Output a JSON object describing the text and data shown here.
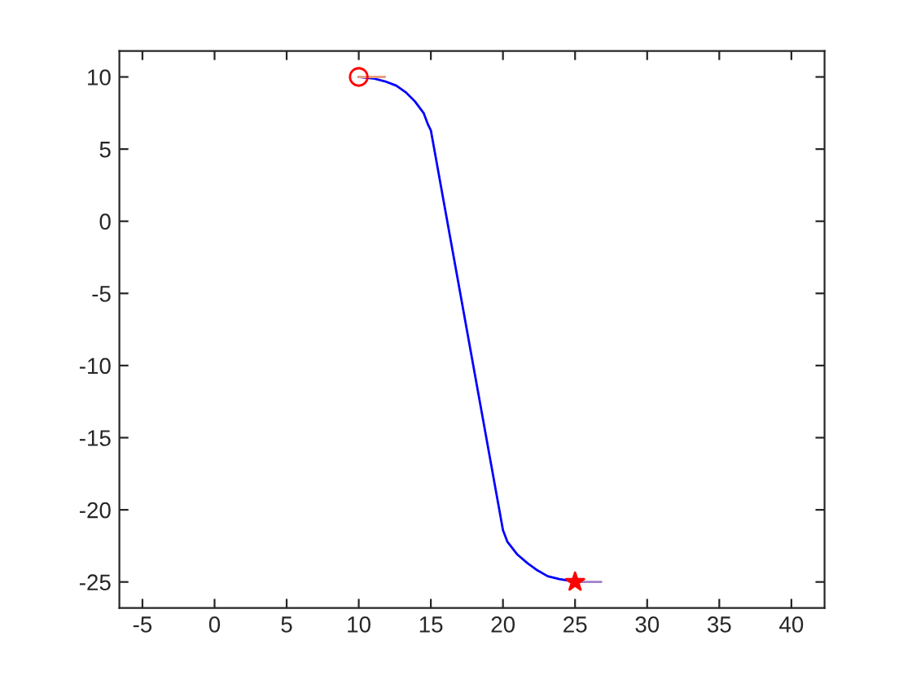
{
  "chart_data": {
    "type": "line",
    "xlim": [
      -6.6,
      42.3
    ],
    "ylim": [
      -26.8,
      11.8
    ],
    "xticks": [
      -5,
      0,
      5,
      10,
      15,
      20,
      25,
      30,
      35,
      40
    ],
    "yticks": [
      -25,
      -20,
      -15,
      -10,
      -5,
      0,
      5,
      10
    ],
    "grid": false,
    "legend": false,
    "series": [
      {
        "color": "#0000ff",
        "marker": "none",
        "x": [
          10,
          11.0,
          11.8,
          12.6,
          13.3,
          13.9,
          14.5,
          14.8,
          15.0,
          20.0,
          20.3,
          21.0,
          21.7,
          22.4,
          23.1,
          23.9,
          24.5,
          25
        ],
        "values": [
          10,
          9.9,
          9.7,
          9.4,
          8.9,
          8.3,
          7.5,
          6.7,
          6.3,
          -21.4,
          -22.2,
          -23.1,
          -23.7,
          -24.2,
          -24.6,
          -24.8,
          -24.9,
          -25
        ]
      },
      {
        "type": "line",
        "color": "#e8a080",
        "marker": "none",
        "x": [
          10,
          11.8
        ],
        "values": [
          10,
          10
        ]
      },
      {
        "type": "line",
        "color": "#a080c8",
        "marker": "none",
        "x": [
          25,
          26.8
        ],
        "values": [
          -25,
          -25
        ]
      },
      {
        "type": "scatter",
        "color": "#ff0000",
        "marker": "circle",
        "x": [
          10
        ],
        "values": [
          10
        ]
      },
      {
        "type": "scatter",
        "color": "#ff0000",
        "marker": "star",
        "x": [
          25
        ],
        "values": [
          -25
        ]
      }
    ]
  }
}
